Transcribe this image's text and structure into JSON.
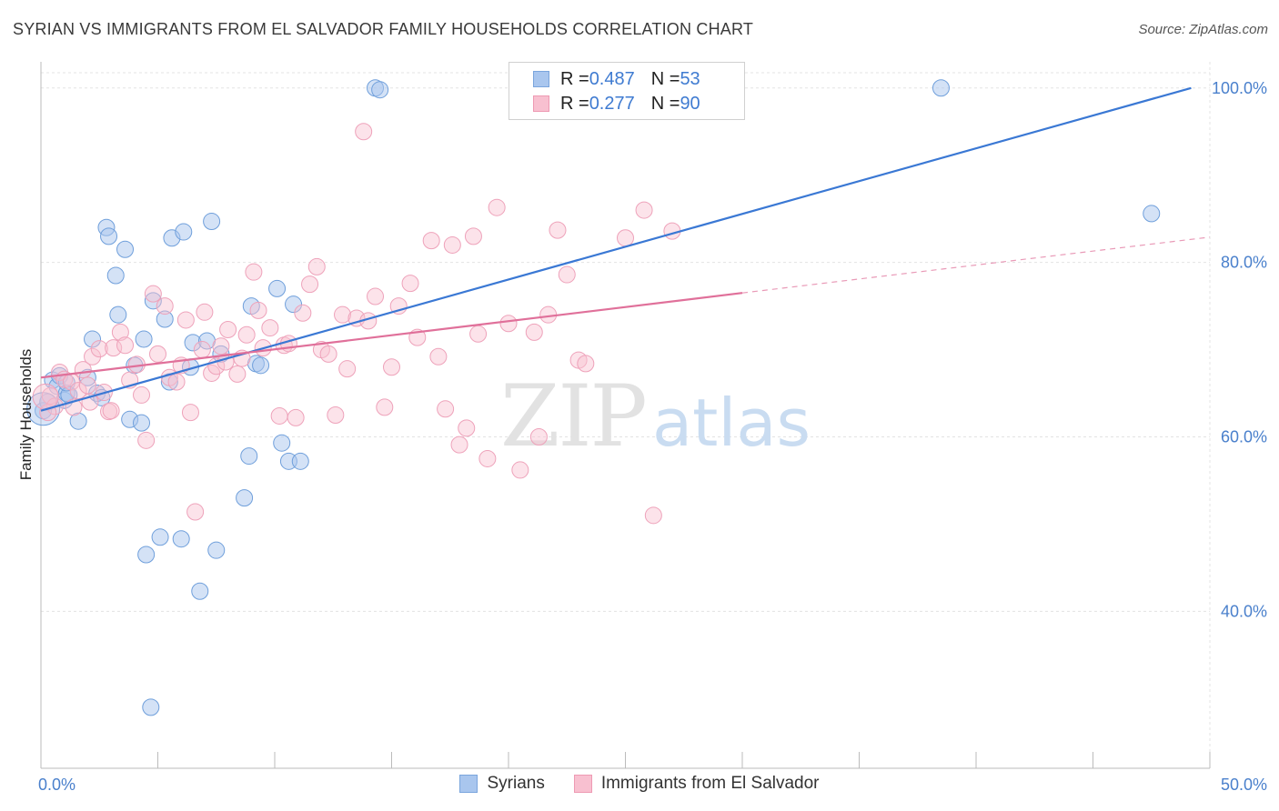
{
  "header": {
    "title": "SYRIAN VS IMMIGRANTS FROM EL SALVADOR FAMILY HOUSEHOLDS CORRELATION CHART",
    "source": "Source: ZipAtlas.com"
  },
  "watermark": {
    "zip": "ZIP",
    "atlas": "atlas"
  },
  "legend": {
    "rows": [
      {
        "r_label": "R = ",
        "r_value": "0.487",
        "n_label": "N = ",
        "n_value": "53",
        "color": "#a9c6ee",
        "border": "#7aa5dd"
      },
      {
        "r_label": "R = ",
        "r_value": "0.277",
        "n_label": "N = ",
        "n_value": "90",
        "color": "#f8c0d0",
        "border": "#ee9ab3"
      }
    ]
  },
  "bottom_legend": [
    {
      "label": "Syrians",
      "color": "#a9c6ee",
      "border": "#7aa5dd"
    },
    {
      "label": "Immigrants from El Salvador",
      "color": "#f8c0d0",
      "border": "#ee9ab3"
    }
  ],
  "chart_data": {
    "type": "scatter",
    "title": "SYRIAN VS IMMIGRANTS FROM EL SALVADOR FAMILY HOUSEHOLDS CORRELATION CHART",
    "xlabel": "",
    "ylabel": "Family Households",
    "xlim": [
      0,
      50
    ],
    "ylim": [
      22,
      103
    ],
    "x_tick_labels": [
      {
        "value": 0,
        "label": "0.0%"
      },
      {
        "value": 50,
        "label": "50.0%"
      }
    ],
    "y_tick_labels": [
      {
        "value": 40,
        "label": "40.0%"
      },
      {
        "value": 60,
        "label": "60.0%"
      },
      {
        "value": 80,
        "label": "80.0%"
      },
      {
        "value": 100,
        "label": "100.0%"
      }
    ],
    "grid": true,
    "colors": {
      "syrians": "#3a78d4",
      "salvador": "#e0709a"
    },
    "series": [
      {
        "name": "Syrians",
        "r": 0.487,
        "n": 53,
        "trend": {
          "x0": 0,
          "y0": 63.0,
          "x1": 49.2,
          "y1": 100.0
        },
        "points": [
          [
            0.1,
            63.0
          ],
          [
            0.3,
            64.0
          ],
          [
            0.5,
            66.5
          ],
          [
            0.7,
            65.8
          ],
          [
            0.8,
            67.0
          ],
          [
            1.0,
            64.2
          ],
          [
            1.1,
            65.0
          ],
          [
            1.2,
            64.8
          ],
          [
            1.6,
            61.8
          ],
          [
            2.0,
            66.8
          ],
          [
            2.2,
            71.2
          ],
          [
            2.4,
            65.0
          ],
          [
            2.6,
            64.5
          ],
          [
            2.8,
            84.0
          ],
          [
            2.9,
            83.0
          ],
          [
            3.2,
            78.5
          ],
          [
            3.3,
            74.0
          ],
          [
            3.6,
            81.5
          ],
          [
            3.8,
            62.0
          ],
          [
            4.0,
            68.2
          ],
          [
            4.3,
            61.6
          ],
          [
            4.4,
            71.2
          ],
          [
            4.8,
            75.6
          ],
          [
            5.1,
            48.5
          ],
          [
            5.3,
            73.5
          ],
          [
            5.5,
            66.3
          ],
          [
            5.6,
            82.8
          ],
          [
            6.0,
            48.3
          ],
          [
            6.1,
            83.5
          ],
          [
            6.4,
            68.0
          ],
          [
            6.5,
            70.8
          ],
          [
            6.8,
            42.3
          ],
          [
            7.1,
            71.0
          ],
          [
            7.3,
            84.7
          ],
          [
            7.5,
            47.0
          ],
          [
            7.7,
            69.5
          ],
          [
            8.7,
            53.0
          ],
          [
            8.9,
            57.8
          ],
          [
            9.0,
            75.0
          ],
          [
            9.2,
            68.4
          ],
          [
            9.4,
            68.2
          ],
          [
            10.1,
            77.0
          ],
          [
            10.3,
            59.3
          ],
          [
            10.6,
            57.2
          ],
          [
            10.8,
            75.2
          ],
          [
            11.1,
            57.2
          ],
          [
            4.5,
            46.5
          ],
          [
            4.7,
            29.0
          ],
          [
            14.3,
            100.0
          ],
          [
            14.5,
            99.8
          ],
          [
            38.5,
            100.0
          ],
          [
            47.5,
            85.6
          ],
          [
            1.1,
            66.2
          ]
        ]
      },
      {
        "name": "Immigrants from El Salvador",
        "r": 0.277,
        "n": 90,
        "trend": {
          "x0": 0,
          "y0": 66.8,
          "x1": 30.0,
          "y1": 76.5,
          "dash_x1": 50.0,
          "dash_y1": 82.9
        },
        "points": [
          [
            0.4,
            64.7
          ],
          [
            0.6,
            63.5
          ],
          [
            0.8,
            67.4
          ],
          [
            1.0,
            66.6
          ],
          [
            1.3,
            66.3
          ],
          [
            1.6,
            65.3
          ],
          [
            1.8,
            67.7
          ],
          [
            2.0,
            65.9
          ],
          [
            2.2,
            69.2
          ],
          [
            2.5,
            70.1
          ],
          [
            2.7,
            65.1
          ],
          [
            2.9,
            62.9
          ],
          [
            3.1,
            70.2
          ],
          [
            3.4,
            72.0
          ],
          [
            3.6,
            70.5
          ],
          [
            3.8,
            66.5
          ],
          [
            4.1,
            68.3
          ],
          [
            4.3,
            64.8
          ],
          [
            4.5,
            59.6
          ],
          [
            4.8,
            76.4
          ],
          [
            5.0,
            69.5
          ],
          [
            5.3,
            75.0
          ],
          [
            5.5,
            66.8
          ],
          [
            5.8,
            66.3
          ],
          [
            6.0,
            68.2
          ],
          [
            6.2,
            73.4
          ],
          [
            6.4,
            62.8
          ],
          [
            6.6,
            51.4
          ],
          [
            6.9,
            70.0
          ],
          [
            7.0,
            74.3
          ],
          [
            7.3,
            67.3
          ],
          [
            7.5,
            68.1
          ],
          [
            7.7,
            70.4
          ],
          [
            7.9,
            68.6
          ],
          [
            8.0,
            72.3
          ],
          [
            8.4,
            67.2
          ],
          [
            8.6,
            69.0
          ],
          [
            8.8,
            71.7
          ],
          [
            9.1,
            78.9
          ],
          [
            9.3,
            74.5
          ],
          [
            9.5,
            70.2
          ],
          [
            9.8,
            72.5
          ],
          [
            10.2,
            62.4
          ],
          [
            10.4,
            70.5
          ],
          [
            10.6,
            70.7
          ],
          [
            10.9,
            62.2
          ],
          [
            11.2,
            74.2
          ],
          [
            11.5,
            77.5
          ],
          [
            11.8,
            79.5
          ],
          [
            12.0,
            70.0
          ],
          [
            12.3,
            69.5
          ],
          [
            12.6,
            62.5
          ],
          [
            12.9,
            74.0
          ],
          [
            13.1,
            67.8
          ],
          [
            13.5,
            73.6
          ],
          [
            13.8,
            95.0
          ],
          [
            14.0,
            73.3
          ],
          [
            14.3,
            76.1
          ],
          [
            14.7,
            63.4
          ],
          [
            15.0,
            68.0
          ],
          [
            15.3,
            75.0
          ],
          [
            15.8,
            77.6
          ],
          [
            16.1,
            71.4
          ],
          [
            16.7,
            82.5
          ],
          [
            17.0,
            69.2
          ],
          [
            17.3,
            63.2
          ],
          [
            17.6,
            82.0
          ],
          [
            17.9,
            59.1
          ],
          [
            18.2,
            61.0
          ],
          [
            18.5,
            83.0
          ],
          [
            18.7,
            71.8
          ],
          [
            19.1,
            57.5
          ],
          [
            19.5,
            86.3
          ],
          [
            20.0,
            73.0
          ],
          [
            20.5,
            56.2
          ],
          [
            21.1,
            72.0
          ],
          [
            21.3,
            60.0
          ],
          [
            21.7,
            74.0
          ],
          [
            22.1,
            83.7
          ],
          [
            22.5,
            78.6
          ],
          [
            23.0,
            68.8
          ],
          [
            23.3,
            68.4
          ],
          [
            25.0,
            82.8
          ],
          [
            25.8,
            86.0
          ],
          [
            26.2,
            51.0
          ],
          [
            27.0,
            83.6
          ],
          [
            0.3,
            62.8
          ],
          [
            1.4,
            63.4
          ],
          [
            3.0,
            63.0
          ],
          [
            2.1,
            64.0
          ]
        ]
      }
    ]
  }
}
